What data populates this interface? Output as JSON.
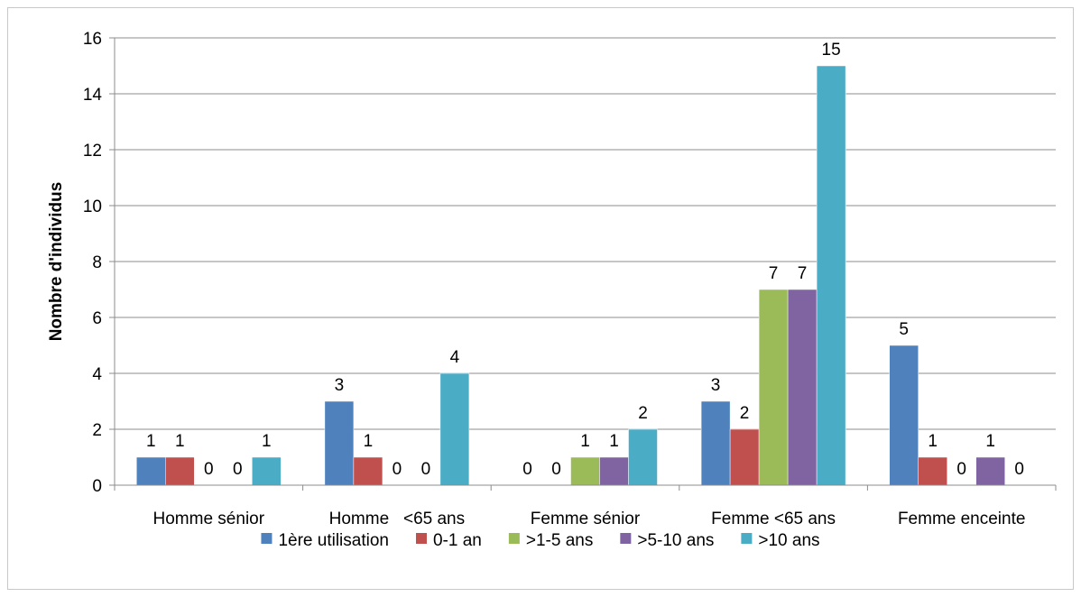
{
  "chart_data": {
    "type": "bar",
    "title": "",
    "xlabel": "",
    "ylabel": "Nombre d'individus",
    "ylim": [
      0,
      16
    ],
    "yticks": [
      0,
      2,
      4,
      6,
      8,
      10,
      12,
      14,
      16
    ],
    "grid": true,
    "legend_position": "bottom",
    "categories": [
      "Homme sénior",
      "Homme <65 ans",
      "Femme sénior",
      "Femme <65 ans",
      "Femme enceinte"
    ],
    "category_labels": [
      "Homme sénior",
      "Homme   <65 ans",
      "Femme sénior",
      "Femme <65 ans",
      "Femme enceinte"
    ],
    "series": [
      {
        "name": "1ère utilisation",
        "color": "#4F81BD",
        "values": [
          1,
          3,
          0,
          3,
          5
        ]
      },
      {
        "name": "0-1 an",
        "color": "#C0504D",
        "values": [
          1,
          1,
          0,
          2,
          1
        ]
      },
      {
        "name": ">1-5 ans",
        "color": "#9BBB59",
        "values": [
          0,
          0,
          1,
          7,
          0
        ]
      },
      {
        "name": ">5-10 ans",
        "color": "#8064A2",
        "values": [
          0,
          0,
          1,
          7,
          1
        ]
      },
      {
        "name": ">10 ans",
        "color": "#4BACC6",
        "values": [
          1,
          4,
          2,
          15,
          0
        ]
      }
    ]
  }
}
